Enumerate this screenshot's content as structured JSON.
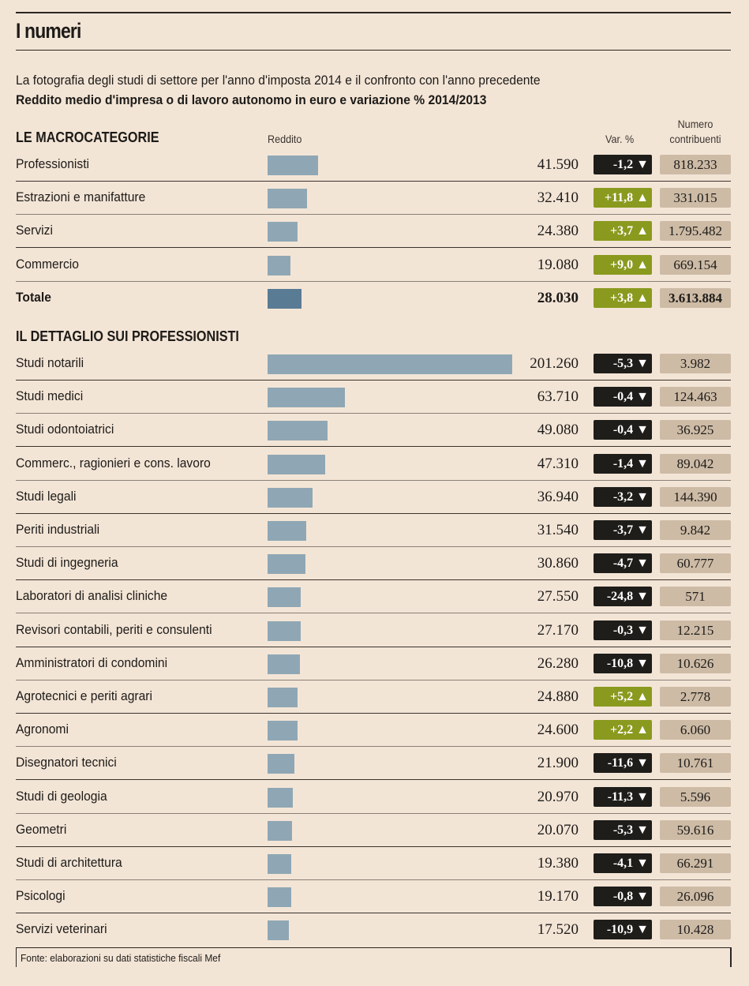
{
  "title": "I numeri",
  "subtitle": "La fotografia degli studi di settore per l'anno d'imposta 2014 e il confronto con l'anno precedente",
  "subtitle_bold": "Reddito medio d'impresa o di lavoro autonomo in euro e variazione % 2014/2013",
  "columns": {
    "reddito": "Reddito",
    "var": "Var. %",
    "numero_1": "Numero",
    "numero_2": "contribuenti"
  },
  "source": "Fonte: elaborazioni su dati statistiche fiscali Mef",
  "colors": {
    "background": "#f3e5d6",
    "bar": "#8fa7b4",
    "bar_total": "#5a7b94",
    "negative": "#1e1d1a",
    "positive": "#8a9a1e",
    "count_box": "#cdbba6"
  },
  "chart_data": {
    "type": "bar",
    "xlabel": "",
    "ylabel": "Reddito",
    "xlim": [
      0,
      201260
    ],
    "sections": [
      {
        "title": "LE MACROCATEGORIE",
        "rows": [
          {
            "label": "Professionisti",
            "value": 41590,
            "value_text": "41.590",
            "var": "-1,2",
            "dir": "down",
            "count": "818.233"
          },
          {
            "label": "Estrazioni e manifatture",
            "value": 32410,
            "value_text": "32.410",
            "var": "+11,8",
            "dir": "up",
            "count": "331.015"
          },
          {
            "label": "Servizi",
            "value": 24380,
            "value_text": "24.380",
            "var": "+3,7",
            "dir": "up",
            "count": "1.795.482"
          },
          {
            "label": "Commercio",
            "value": 19080,
            "value_text": "19.080",
            "var": "+9,0",
            "dir": "up",
            "count": "669.154"
          },
          {
            "label": "Totale",
            "value": 28030,
            "value_text": "28.030",
            "var": "+3,8",
            "dir": "up",
            "count": "3.613.884",
            "total": true
          }
        ]
      },
      {
        "title": "IL DETTAGLIO SUI PROFESSIONISTI",
        "rows": [
          {
            "label": "Studi notarili",
            "value": 201260,
            "value_text": "201.260",
            "var": "-5,3",
            "dir": "down",
            "count": "3.982"
          },
          {
            "label": "Studi medici",
            "value": 63710,
            "value_text": "63.710",
            "var": "-0,4",
            "dir": "down",
            "count": "124.463"
          },
          {
            "label": "Studi odontoiatrici",
            "value": 49080,
            "value_text": "49.080",
            "var": "-0,4",
            "dir": "down",
            "count": "36.925"
          },
          {
            "label": "Commerc., ragionieri e cons. lavoro",
            "value": 47310,
            "value_text": "47.310",
            "var": "-1,4",
            "dir": "down",
            "count": "89.042"
          },
          {
            "label": "Studi legali",
            "value": 36940,
            "value_text": "36.940",
            "var": "-3,2",
            "dir": "down",
            "count": "144.390"
          },
          {
            "label": "Periti industriali",
            "value": 31540,
            "value_text": "31.540",
            "var": "-3,7",
            "dir": "down",
            "count": "9.842"
          },
          {
            "label": "Studi di ingegneria",
            "value": 30860,
            "value_text": "30.860",
            "var": "-4,7",
            "dir": "down",
            "count": "60.777"
          },
          {
            "label": "Laboratori di analisi cliniche",
            "value": 27550,
            "value_text": "27.550",
            "var": "-24,8",
            "dir": "down",
            "count": "571"
          },
          {
            "label": "Revisori contabili, periti e consulenti",
            "value": 27170,
            "value_text": "27.170",
            "var": "-0,3",
            "dir": "down",
            "count": "12.215"
          },
          {
            "label": "Amministratori di condomini",
            "value": 26280,
            "value_text": "26.280",
            "var": "-10,8",
            "dir": "down",
            "count": "10.626"
          },
          {
            "label": "Agrotecnici e periti agrari",
            "value": 24880,
            "value_text": "24.880",
            "var": "+5,2",
            "dir": "up",
            "count": "2.778"
          },
          {
            "label": "Agronomi",
            "value": 24600,
            "value_text": "24.600",
            "var": "+2,2",
            "dir": "up",
            "count": "6.060"
          },
          {
            "label": "Disegnatori tecnici",
            "value": 21900,
            "value_text": "21.900",
            "var": "-11,6",
            "dir": "down",
            "count": "10.761"
          },
          {
            "label": "Studi di geologia",
            "value": 20970,
            "value_text": "20.970",
            "var": "-11,3",
            "dir": "down",
            "count": "5.596"
          },
          {
            "label": "Geometri",
            "value": 20070,
            "value_text": "20.070",
            "var": "-5,3",
            "dir": "down",
            "count": "59.616"
          },
          {
            "label": "Studi di architettura",
            "value": 19380,
            "value_text": "19.380",
            "var": "-4,1",
            "dir": "down",
            "count": "66.291"
          },
          {
            "label": "Psicologi",
            "value": 19170,
            "value_text": "19.170",
            "var": "-0,8",
            "dir": "down",
            "count": "26.096"
          },
          {
            "label": "Servizi veterinari",
            "value": 17520,
            "value_text": "17.520",
            "var": "-10,9",
            "dir": "down",
            "count": "10.428"
          }
        ]
      }
    ]
  }
}
